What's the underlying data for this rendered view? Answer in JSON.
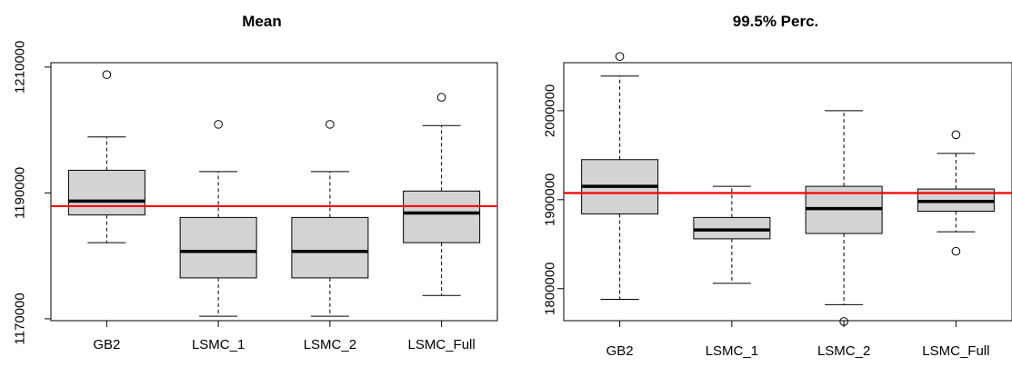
{
  "figure": {
    "background_color": "#ffffff",
    "box_fill_color": "#d3d3d3",
    "reference_line_color": "#ff0000"
  },
  "chart_data": [
    {
      "type": "boxplot",
      "title": "Mean",
      "xlabel": "",
      "ylabel": "",
      "categories": [
        "GB2",
        "LSMC_1",
        "LSMC_2",
        "LSMC_Full"
      ],
      "ylim": [
        1169700,
        1210700
      ],
      "yticks": [
        1170000,
        1190000,
        1210000
      ],
      "ytick_labels": [
        "1170000",
        "1190000",
        "1210000"
      ],
      "reference_line": 1187900,
      "boxes": [
        {
          "category": "GB2",
          "whisker_low": 1182100,
          "q1": 1186500,
          "median": 1188700,
          "q3": 1193600,
          "whisker_high": 1198900,
          "outliers": [
            1208800
          ]
        },
        {
          "category": "LSMC_1",
          "whisker_low": 1170400,
          "q1": 1176500,
          "median": 1180700,
          "q3": 1186100,
          "whisker_high": 1193400,
          "outliers": [
            1200900
          ]
        },
        {
          "category": "LSMC_2",
          "whisker_low": 1170400,
          "q1": 1176500,
          "median": 1180700,
          "q3": 1186100,
          "whisker_high": 1193400,
          "outliers": [
            1200900
          ]
        },
        {
          "category": "LSMC_Full",
          "whisker_low": 1173700,
          "q1": 1182100,
          "median": 1186800,
          "q3": 1190300,
          "whisker_high": 1200700,
          "outliers": [
            1205200
          ]
        }
      ],
      "grid": false,
      "legend": "none"
    },
    {
      "type": "boxplot",
      "title": "99.5% Perc.",
      "xlabel": "",
      "ylabel": "",
      "categories": [
        "GB2",
        "LSMC_1",
        "LSMC_2",
        "LSMC_Full"
      ],
      "ylim": [
        1764000,
        2054000
      ],
      "yticks": [
        1800000,
        1900000,
        2000000
      ],
      "ytick_labels": [
        "1800000",
        "1900000",
        "2000000"
      ],
      "reference_line": 1907500,
      "boxes": [
        {
          "category": "GB2",
          "whisker_low": 1788000,
          "q1": 1884000,
          "median": 1915000,
          "q3": 1945000,
          "whisker_high": 2039000,
          "outliers": [
            2061000
          ]
        },
        {
          "category": "LSMC_1",
          "whisker_low": 1806000,
          "q1": 1856000,
          "median": 1866000,
          "q3": 1880000,
          "whisker_high": 1915000,
          "outliers": []
        },
        {
          "category": "LSMC_2",
          "whisker_low": 1782000,
          "q1": 1862000,
          "median": 1890000,
          "q3": 1915000,
          "whisker_high": 2000000,
          "outliers": [
            1763000
          ]
        },
        {
          "category": "LSMC_Full",
          "whisker_low": 1864000,
          "q1": 1887000,
          "median": 1898000,
          "q3": 1912000,
          "whisker_high": 1952000,
          "outliers": [
            1973000,
            1842000
          ]
        }
      ],
      "grid": false,
      "legend": "none"
    }
  ]
}
